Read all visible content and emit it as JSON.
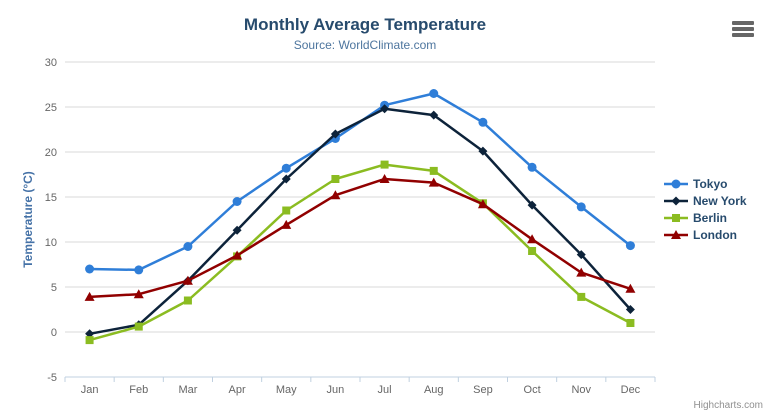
{
  "chart_data": {
    "type": "line",
    "title": "Monthly Average Temperature",
    "subtitle": "Source: WorldClimate.com",
    "xlabel": "",
    "ylabel": "Temperature (°C)",
    "categories": [
      "Jan",
      "Feb",
      "Mar",
      "Apr",
      "May",
      "Jun",
      "Jul",
      "Aug",
      "Sep",
      "Oct",
      "Nov",
      "Dec"
    ],
    "ylim": [
      -5,
      30
    ],
    "yticks": [
      -5,
      0,
      5,
      10,
      15,
      20,
      25,
      30
    ],
    "grid": "horizontal",
    "legend_position": "right",
    "series": [
      {
        "name": "Tokyo",
        "color": "#2f7ed8",
        "marker": "circle",
        "values": [
          7.0,
          6.9,
          9.5,
          14.5,
          18.2,
          21.5,
          25.2,
          26.5,
          23.3,
          18.3,
          13.9,
          9.6
        ]
      },
      {
        "name": "New York",
        "color": "#0d233a",
        "marker": "diamond",
        "values": [
          -0.2,
          0.8,
          5.7,
          11.3,
          17.0,
          22.0,
          24.8,
          24.1,
          20.1,
          14.1,
          8.6,
          2.5
        ]
      },
      {
        "name": "Berlin",
        "color": "#8bbc21",
        "marker": "square",
        "values": [
          -0.9,
          0.6,
          3.5,
          8.4,
          13.5,
          17.0,
          18.6,
          17.9,
          14.3,
          9.0,
          3.9,
          1.0
        ]
      },
      {
        "name": "London",
        "color": "#910000",
        "marker": "triangle",
        "values": [
          3.9,
          4.2,
          5.7,
          8.5,
          11.9,
          15.2,
          17.0,
          16.6,
          14.2,
          10.3,
          6.6,
          4.8
        ]
      }
    ],
    "credits": "Highcharts.com"
  },
  "theme": {
    "title_color": "#274b6d",
    "subtitle_color": "#4d759e",
    "axis_label_color": "#666666",
    "axis_title_color": "#4572a7",
    "gridline_color": "#d8d8d8",
    "axis_line_color": "#c0d0e0",
    "legend_text_color": "#274b6d",
    "credits_color": "#909090",
    "menu_icon_color": "#666666"
  }
}
